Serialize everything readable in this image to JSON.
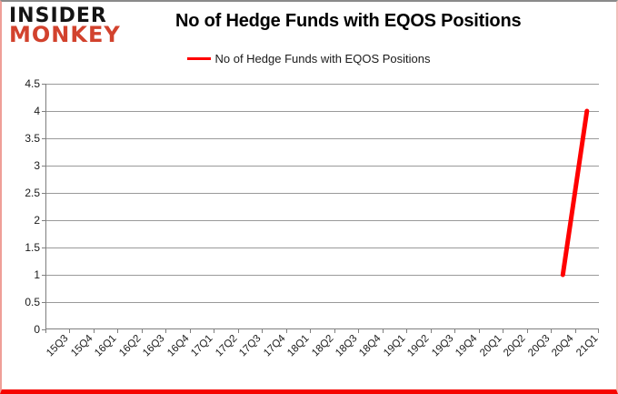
{
  "logo": {
    "line1": "INSIDER",
    "line2": "MONKEY",
    "accent_color": "#d2422d",
    "text_color": "#141414"
  },
  "header": {
    "title": "No of Hedge Funds with EQOS Positions"
  },
  "chart_data": {
    "type": "line",
    "title": "No of Hedge Funds with EQOS Positions",
    "legend_label": "No of Hedge Funds with EQOS Positions",
    "legend_position": "top-center",
    "grid": true,
    "xlabel": "",
    "ylabel": "",
    "ylim": [
      0,
      4.5
    ],
    "ytick_step": 0.5,
    "ytick_labels": [
      "0",
      "0.5",
      "1",
      "1.5",
      "2",
      "2.5",
      "3",
      "3.5",
      "4",
      "4.5"
    ],
    "categories": [
      "15Q3",
      "15Q4",
      "16Q1",
      "16Q2",
      "16Q3",
      "16Q4",
      "17Q1",
      "17Q2",
      "17Q3",
      "17Q4",
      "18Q1",
      "18Q2",
      "18Q3",
      "18Q4",
      "19Q1",
      "19Q2",
      "19Q3",
      "19Q4",
      "20Q1",
      "20Q2",
      "20Q3",
      "20Q4",
      "21Q1"
    ],
    "series": [
      {
        "name": "No of Hedge Funds with EQOS Positions",
        "color": "#ff0000",
        "values": [
          null,
          null,
          null,
          null,
          null,
          null,
          null,
          null,
          null,
          null,
          null,
          null,
          null,
          null,
          null,
          null,
          null,
          null,
          null,
          null,
          null,
          1,
          4
        ]
      }
    ]
  }
}
